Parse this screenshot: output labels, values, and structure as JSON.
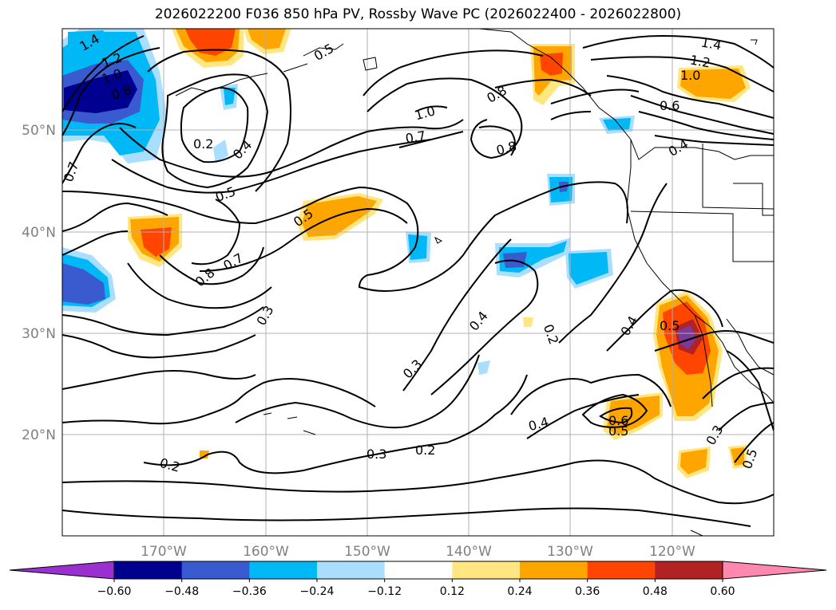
{
  "title": "2026022200 F036 850 hPa PV, Rossby Wave PC (2026022400 - 2026022800)",
  "map": {
    "lat_labels": [
      "50°N",
      "40°N",
      "30°N",
      "20°N"
    ],
    "lon_labels": [
      "170°W",
      "160°W",
      "150°W",
      "140°W",
      "130°W",
      "120°W"
    ],
    "extent": {
      "lon": [
        -180,
        -110
      ],
      "lat": [
        10,
        60
      ]
    },
    "grid": true,
    "contour_labels": [
      "1.4",
      "1.2",
      "1.0",
      "0.8",
      "0.2",
      "0.4",
      "0.5",
      "0.7",
      "0.8",
      "0.7",
      "0.5",
      "0.3",
      "0.3",
      "0.4",
      "0.2",
      "0.3",
      "0.2",
      "0.2",
      "0.4",
      "0.5",
      "0.6",
      "0.5",
      "0.3",
      "0.4",
      "0.5",
      "0.8",
      "0.8",
      "1.0",
      "0.7",
      "1.4",
      "1.2",
      "1.0",
      "0.6",
      "0.4",
      "0.5"
    ]
  },
  "colorbar": {
    "ticks": [
      "−0.60",
      "−0.48",
      "−0.36",
      "−0.24",
      "−0.12",
      "0.12",
      "0.24",
      "0.36",
      "0.48",
      "0.60"
    ],
    "colors": [
      "#9b30d0",
      "#000090",
      "#3a5bd0",
      "#00b8f5",
      "#aadeff",
      "#ffffff",
      "#ffe680",
      "#ffa500",
      "#ff4500",
      "#b22222",
      "#ff88b0"
    ]
  }
}
